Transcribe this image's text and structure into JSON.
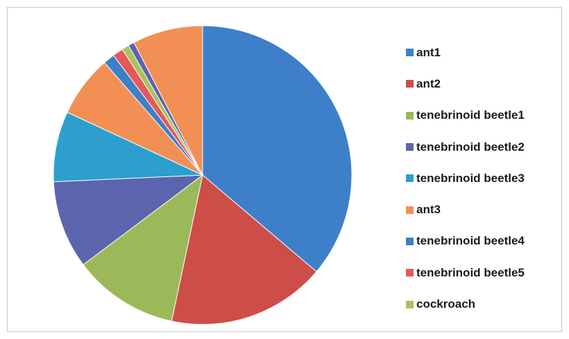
{
  "chart_data": {
    "type": "pie",
    "title": "",
    "categories": [
      "ant1",
      "ant2",
      "tenebrinoid beetle1",
      "tenebrinoid beetle2",
      "tenebrinoid beetle3",
      "ant3",
      "tenebrinoid beetle4",
      "tenebrinoid beetle5",
      "cockroach",
      "unlabeled slice 10",
      "unlabeled slice 11"
    ],
    "values": [
      38,
      18,
      12,
      10,
      8,
      7,
      1.3,
      1.2,
      0.8,
      0.7,
      8
    ],
    "colors": [
      "#3d7fc8",
      "#cd4d48",
      "#9cb95a",
      "#5a65ad",
      "#2c9fcc",
      "#f28f55",
      "#3d7fc8",
      "#e25a5c",
      "#a9c25a",
      "#5a65ad",
      "#f28f55"
    ],
    "legend_placement": "right",
    "legend": [
      "ant1",
      "ant2",
      "tenebrinoid beetle1",
      "tenebrinoid beetle2",
      "tenebrinoid beetle3",
      "ant3",
      "tenebrinoid beetle4",
      "tenebrinoid beetle5",
      "cockroach"
    ]
  }
}
